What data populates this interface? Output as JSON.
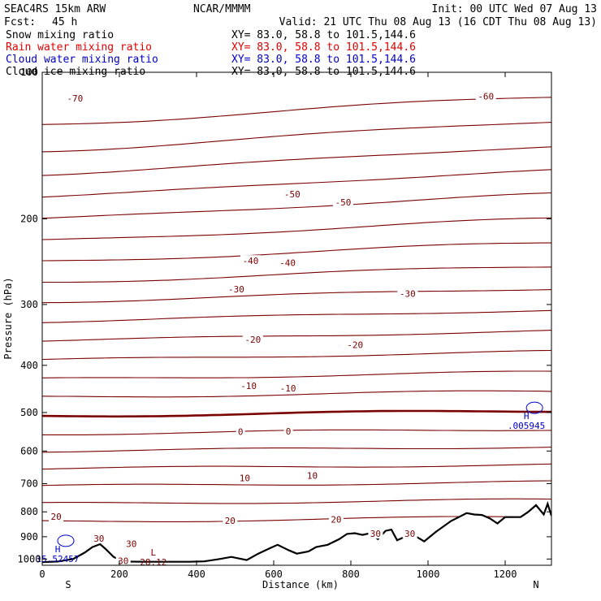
{
  "header": {
    "model": "SEAC4RS 15km ARW",
    "center": "NCAR/MMMM",
    "init": "Init: 00 UTC Wed 07 Aug 13",
    "fcst_label": "Fcst:",
    "fcst_value": "45 h",
    "valid": "Valid: 21 UTC Thu 08 Aug 13 (16 CDT Thu 08 Aug 13)"
  },
  "fields": [
    {
      "name": "Snow mixing ratio",
      "xy": "XY=  83.0, 58.8 to 101.5,144.6",
      "color": "#000000"
    },
    {
      "name": "Rain water mixing ratio",
      "xy": "XY=  83.0, 58.8 to 101.5,144.6",
      "color": "#e00000"
    },
    {
      "name": "Cloud water mixing ratio",
      "xy": "XY=  83.0, 58.8 to 101.5,144.6",
      "color": "#0000c8"
    },
    {
      "name": "Cloud ice mixing ratio",
      "xy": "XY=  83.0, 58.8 to 101.5,144.6",
      "color": "#000000"
    }
  ],
  "colors": {
    "isotherm": "#7a0000",
    "terrain": "#000000",
    "cloud": "#0000c8",
    "frame": "#000000"
  },
  "chart_data": {
    "type": "line",
    "xlabel": "Distance (km)",
    "ylabel": "Pressure (hPa)",
    "xlim": [
      0,
      1320
    ],
    "ylim": [
      1030,
      100
    ],
    "y_scale": "log-pressure",
    "xticks": [
      0,
      200,
      400,
      600,
      800,
      1000,
      1200
    ],
    "yticks": [
      100,
      200,
      300,
      400,
      500,
      600,
      700,
      800,
      900,
      1000
    ],
    "ytick_labels": [
      "100",
      "200",
      "300",
      "400",
      "500",
      "600",
      "700",
      "800",
      "900",
      "1000"
    ],
    "end_labels": {
      "left": "S",
      "right": "N"
    },
    "isotherm_levels": [
      -70,
      -65,
      -60,
      -55,
      -50,
      -45,
      -40,
      -35,
      -30,
      -25,
      -20,
      -15,
      -10,
      -5,
      0,
      5,
      10,
      15,
      20,
      25,
      30
    ],
    "isotherm_pressure_at_left": [
      128,
      145,
      162,
      180,
      200,
      222,
      245,
      270,
      296,
      325,
      356,
      390,
      427,
      465,
      508,
      553,
      600,
      652,
      708,
      770,
      838
    ],
    "isotherm_pressure_at_right": [
      112,
      126,
      142,
      159,
      178,
      200,
      224,
      250,
      278,
      308,
      340,
      375,
      413,
      452,
      496,
      541,
      588,
      640,
      695,
      756,
      820
    ],
    "freezing_level_value": 0,
    "contour_labels": [
      {
        "text": "-70",
        "x": 85,
        "p": 113
      },
      {
        "text": "-60",
        "x": 1150,
        "p": 112
      },
      {
        "text": "-50",
        "x": 648,
        "p": 178
      },
      {
        "text": "-50",
        "x": 780,
        "p": 185
      },
      {
        "text": "-40",
        "x": 540,
        "p": 244
      },
      {
        "text": "-40",
        "x": 636,
        "p": 246
      },
      {
        "text": "-30",
        "x": 503,
        "p": 279
      },
      {
        "text": "-30",
        "x": 947,
        "p": 285
      },
      {
        "text": "-20",
        "x": 546,
        "p": 354
      },
      {
        "text": "-20",
        "x": 811,
        "p": 363
      },
      {
        "text": "-10",
        "x": 535,
        "p": 441
      },
      {
        "text": "-10",
        "x": 637,
        "p": 446
      },
      {
        "text": "0",
        "x": 514,
        "p": 547
      },
      {
        "text": "0",
        "x": 638,
        "p": 546
      },
      {
        "text": "10",
        "x": 525,
        "p": 681
      },
      {
        "text": "10",
        "x": 700,
        "p": 674
      },
      {
        "text": "20",
        "x": 36,
        "p": 818
      },
      {
        "text": "20",
        "x": 487,
        "p": 834
      },
      {
        "text": "20",
        "x": 762,
        "p": 829
      },
      {
        "text": "30",
        "x": 147,
        "p": 907
      },
      {
        "text": "30",
        "x": 231,
        "p": 930
      },
      {
        "text": "30",
        "x": 864,
        "p": 887
      },
      {
        "text": "30",
        "x": 953,
        "p": 886
      },
      {
        "text": "30",
        "x": 210,
        "p": 1008
      }
    ],
    "extrema": [
      {
        "type": "L",
        "value": "28.12",
        "x": 288,
        "p": 983,
        "color": "#7a0000"
      },
      {
        "type": "H",
        "value": "15.52457",
        "x": 40,
        "p": 968,
        "color": "#0000c8"
      },
      {
        "type": "H",
        "value": ".005945",
        "x": 1255,
        "p": 516,
        "color": "#0000c8"
      }
    ],
    "terrain_pressure_profile": {
      "x": [
        0,
        40,
        80,
        110,
        130,
        150,
        165,
        185,
        210,
        260,
        320,
        380,
        420,
        460,
        490,
        530,
        560,
        590,
        610,
        640,
        660,
        690,
        710,
        740,
        770,
        790,
        810,
        830,
        850,
        870,
        890,
        905,
        920,
        940,
        955,
        970,
        990,
        1020,
        1060,
        1080,
        1100,
        1120,
        1140,
        1160,
        1180,
        1200,
        1220,
        1240,
        1260,
        1280,
        1300,
        1310,
        1320
      ],
      "p": [
        1015,
        1012,
        1000,
        970,
        945,
        932,
        955,
        990,
        1012,
        1013,
        1013,
        1013,
        1011,
        1000,
        990,
        1005,
        975,
        950,
        935,
        960,
        975,
        965,
        945,
        935,
        910,
        888,
        885,
        892,
        885,
        910,
        875,
        870,
        915,
        900,
        880,
        900,
        920,
        880,
        835,
        820,
        805,
        810,
        812,
        825,
        845,
        820,
        820,
        820,
        800,
        775,
        810,
        770,
        815
      ]
    }
  }
}
